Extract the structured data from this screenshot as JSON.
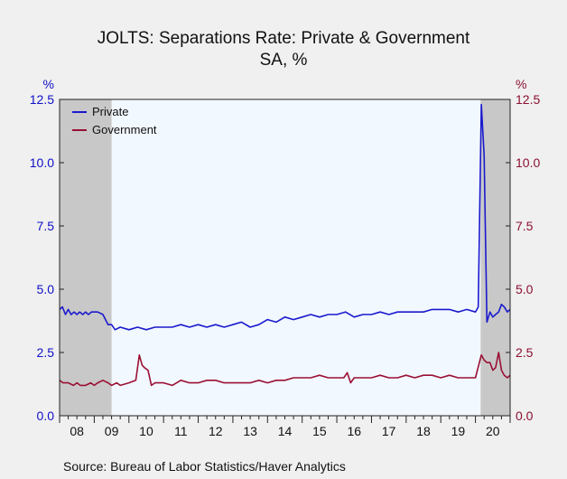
{
  "chart_data": {
    "type": "line",
    "title": "JOLTS: Separations Rate: Private & Government",
    "subtitle": "SA, %",
    "ylabel_left": "%",
    "ylabel_right": "%",
    "ylim": [
      0,
      12.5
    ],
    "yticks": [
      "0.0",
      "2.5",
      "5.0",
      "7.5",
      "10.0",
      "12.5"
    ],
    "x_tick_labels": [
      "08",
      "09",
      "10",
      "11",
      "12",
      "13",
      "14",
      "15",
      "16",
      "17",
      "18",
      "19",
      "20"
    ],
    "x_range": [
      2008.0,
      2021.0
    ],
    "grid": false,
    "legend_position": "top-left",
    "recession_bands": [
      [
        2008.0,
        2009.5
      ],
      [
        2020.15,
        2021.0
      ]
    ],
    "colors": {
      "private": "#1a1acd",
      "government": "#9a1034",
      "recession": "#c8c8c8",
      "plot_bg": "#f2f8ff",
      "left_axis": "#1010c8",
      "right_axis": "#8a1030"
    },
    "series": [
      {
        "name": "Private",
        "axis": "left",
        "color": "#1a1acd",
        "x": [
          2008.0,
          2008.08,
          2008.17,
          2008.25,
          2008.33,
          2008.42,
          2008.5,
          2008.58,
          2008.67,
          2008.75,
          2008.83,
          2008.92,
          2009.0,
          2009.1,
          2009.25,
          2009.4,
          2009.5,
          2009.6,
          2009.75,
          2010.0,
          2010.25,
          2010.5,
          2010.75,
          2011.0,
          2011.25,
          2011.5,
          2011.75,
          2012.0,
          2012.25,
          2012.5,
          2012.75,
          2013.0,
          2013.25,
          2013.5,
          2013.75,
          2014.0,
          2014.25,
          2014.5,
          2014.75,
          2015.0,
          2015.25,
          2015.5,
          2015.75,
          2016.0,
          2016.25,
          2016.5,
          2016.75,
          2017.0,
          2017.25,
          2017.5,
          2017.75,
          2018.0,
          2018.25,
          2018.5,
          2018.75,
          2019.0,
          2019.25,
          2019.5,
          2019.75,
          2020.0,
          2020.08,
          2020.17,
          2020.25,
          2020.33,
          2020.42,
          2020.5,
          2020.58,
          2020.67,
          2020.75,
          2020.83,
          2020.92,
          2021.0
        ],
        "values": [
          4.2,
          4.3,
          4.0,
          4.2,
          4.0,
          4.1,
          4.0,
          4.1,
          4.0,
          4.1,
          4.0,
          4.1,
          4.1,
          4.1,
          4.0,
          3.6,
          3.6,
          3.4,
          3.5,
          3.4,
          3.5,
          3.4,
          3.5,
          3.5,
          3.5,
          3.6,
          3.5,
          3.6,
          3.5,
          3.6,
          3.5,
          3.6,
          3.7,
          3.5,
          3.6,
          3.8,
          3.7,
          3.9,
          3.8,
          3.9,
          4.0,
          3.9,
          4.0,
          4.0,
          4.1,
          3.9,
          4.0,
          4.0,
          4.1,
          4.0,
          4.1,
          4.1,
          4.1,
          4.1,
          4.2,
          4.2,
          4.2,
          4.1,
          4.2,
          4.1,
          4.3,
          12.3,
          10.3,
          3.7,
          4.1,
          3.9,
          4.0,
          4.1,
          4.4,
          4.3,
          4.1,
          4.2
        ]
      },
      {
        "name": "Government",
        "axis": "right",
        "color": "#9a1034",
        "x": [
          2008.0,
          2008.1,
          2008.25,
          2008.4,
          2008.5,
          2008.6,
          2008.75,
          2008.9,
          2009.0,
          2009.1,
          2009.25,
          2009.4,
          2009.5,
          2009.65,
          2009.75,
          2010.0,
          2010.2,
          2010.3,
          2010.38,
          2010.45,
          2010.55,
          2010.65,
          2010.75,
          2011.0,
          2011.25,
          2011.5,
          2011.75,
          2012.0,
          2012.25,
          2012.5,
          2012.75,
          2013.0,
          2013.25,
          2013.5,
          2013.75,
          2014.0,
          2014.25,
          2014.5,
          2014.75,
          2015.0,
          2015.25,
          2015.5,
          2015.75,
          2016.0,
          2016.2,
          2016.3,
          2016.4,
          2016.5,
          2016.75,
          2017.0,
          2017.25,
          2017.5,
          2017.75,
          2018.0,
          2018.25,
          2018.5,
          2018.75,
          2019.0,
          2019.25,
          2019.5,
          2019.75,
          2020.0,
          2020.17,
          2020.25,
          2020.33,
          2020.42,
          2020.5,
          2020.58,
          2020.67,
          2020.75,
          2020.83,
          2020.92,
          2021.0
        ],
        "values": [
          1.4,
          1.3,
          1.3,
          1.2,
          1.3,
          1.2,
          1.2,
          1.3,
          1.2,
          1.3,
          1.4,
          1.3,
          1.2,
          1.3,
          1.2,
          1.3,
          1.4,
          2.4,
          2.0,
          1.9,
          1.8,
          1.2,
          1.3,
          1.3,
          1.2,
          1.4,
          1.3,
          1.3,
          1.4,
          1.4,
          1.3,
          1.3,
          1.3,
          1.3,
          1.4,
          1.3,
          1.4,
          1.4,
          1.5,
          1.5,
          1.5,
          1.6,
          1.5,
          1.5,
          1.5,
          1.7,
          1.3,
          1.5,
          1.5,
          1.5,
          1.6,
          1.5,
          1.5,
          1.6,
          1.5,
          1.6,
          1.6,
          1.5,
          1.6,
          1.5,
          1.5,
          1.5,
          2.4,
          2.2,
          2.1,
          2.1,
          1.8,
          1.9,
          2.5,
          1.8,
          1.6,
          1.5,
          1.6
        ]
      }
    ],
    "source": "Source:  Bureau of Labor Statistics/Haver Analytics"
  }
}
